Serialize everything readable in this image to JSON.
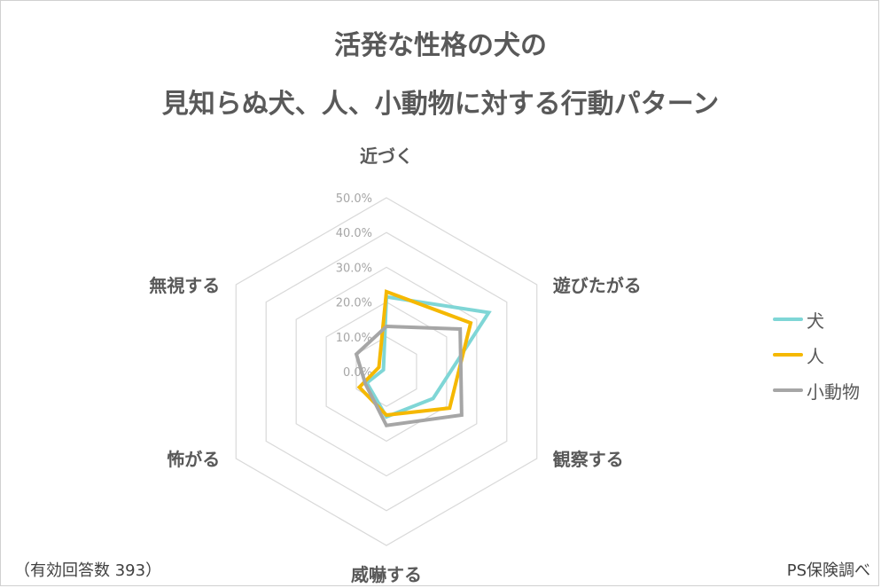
{
  "title_line1": "活発な性格の犬の",
  "title_line2": "見知らぬ犬、人、小動物に対する行動パターン",
  "footnote_left": "（有効回答数 393）",
  "footnote_right": "PS保険調べ",
  "chart_data": {
    "type": "radar",
    "title": "活発な性格の犬の 見知らぬ犬、人、小動物に対する行動パターン",
    "categories": [
      "近づく",
      "遊びたがる",
      "観察する",
      "威嚇する",
      "怖がる",
      "無視する"
    ],
    "tick_labels": [
      "0.0%",
      "10.0%",
      "20.0%",
      "30.0%",
      "40.0%",
      "50.0%"
    ],
    "rlim": [
      0,
      50
    ],
    "grid": true,
    "legend_position": "right",
    "series": [
      {
        "name": "犬",
        "color": "#7fd6d6",
        "values": [
          21.5,
          34.0,
          15.5,
          13.0,
          6.5,
          1.0
        ]
      },
      {
        "name": "人",
        "color": "#f5b800",
        "values": [
          23.0,
          28.0,
          21.0,
          12.5,
          9.0,
          2.5
        ]
      },
      {
        "name": "小動物",
        "color": "#a6a6a6",
        "values": [
          13.0,
          24.5,
          25.0,
          15.5,
          7.0,
          10.0
        ]
      }
    ]
  }
}
